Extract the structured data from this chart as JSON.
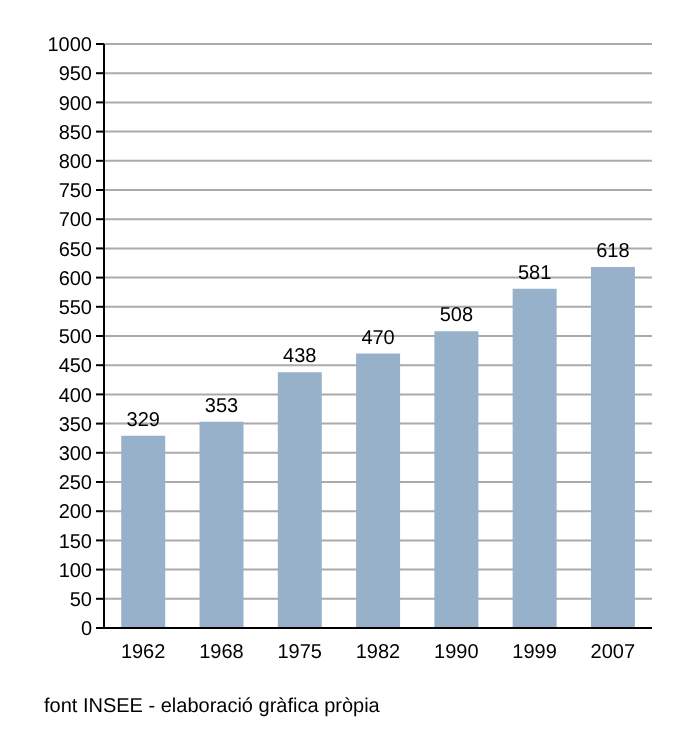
{
  "chart_data": {
    "type": "bar",
    "categories": [
      "1962",
      "1968",
      "1975",
      "1982",
      "1990",
      "1999",
      "2007"
    ],
    "values": [
      329,
      353,
      438,
      470,
      508,
      581,
      618
    ],
    "color": "#98b1cb",
    "ylim": [
      0,
      1000
    ],
    "yticks": [
      0,
      50,
      100,
      150,
      200,
      250,
      300,
      350,
      400,
      450,
      500,
      550,
      600,
      650,
      700,
      750,
      800,
      850,
      900,
      950,
      1000
    ],
    "grid": "y",
    "data_labels": true,
    "annotations": [
      "font INSEE - elaboració gràfica pròpia"
    ]
  }
}
